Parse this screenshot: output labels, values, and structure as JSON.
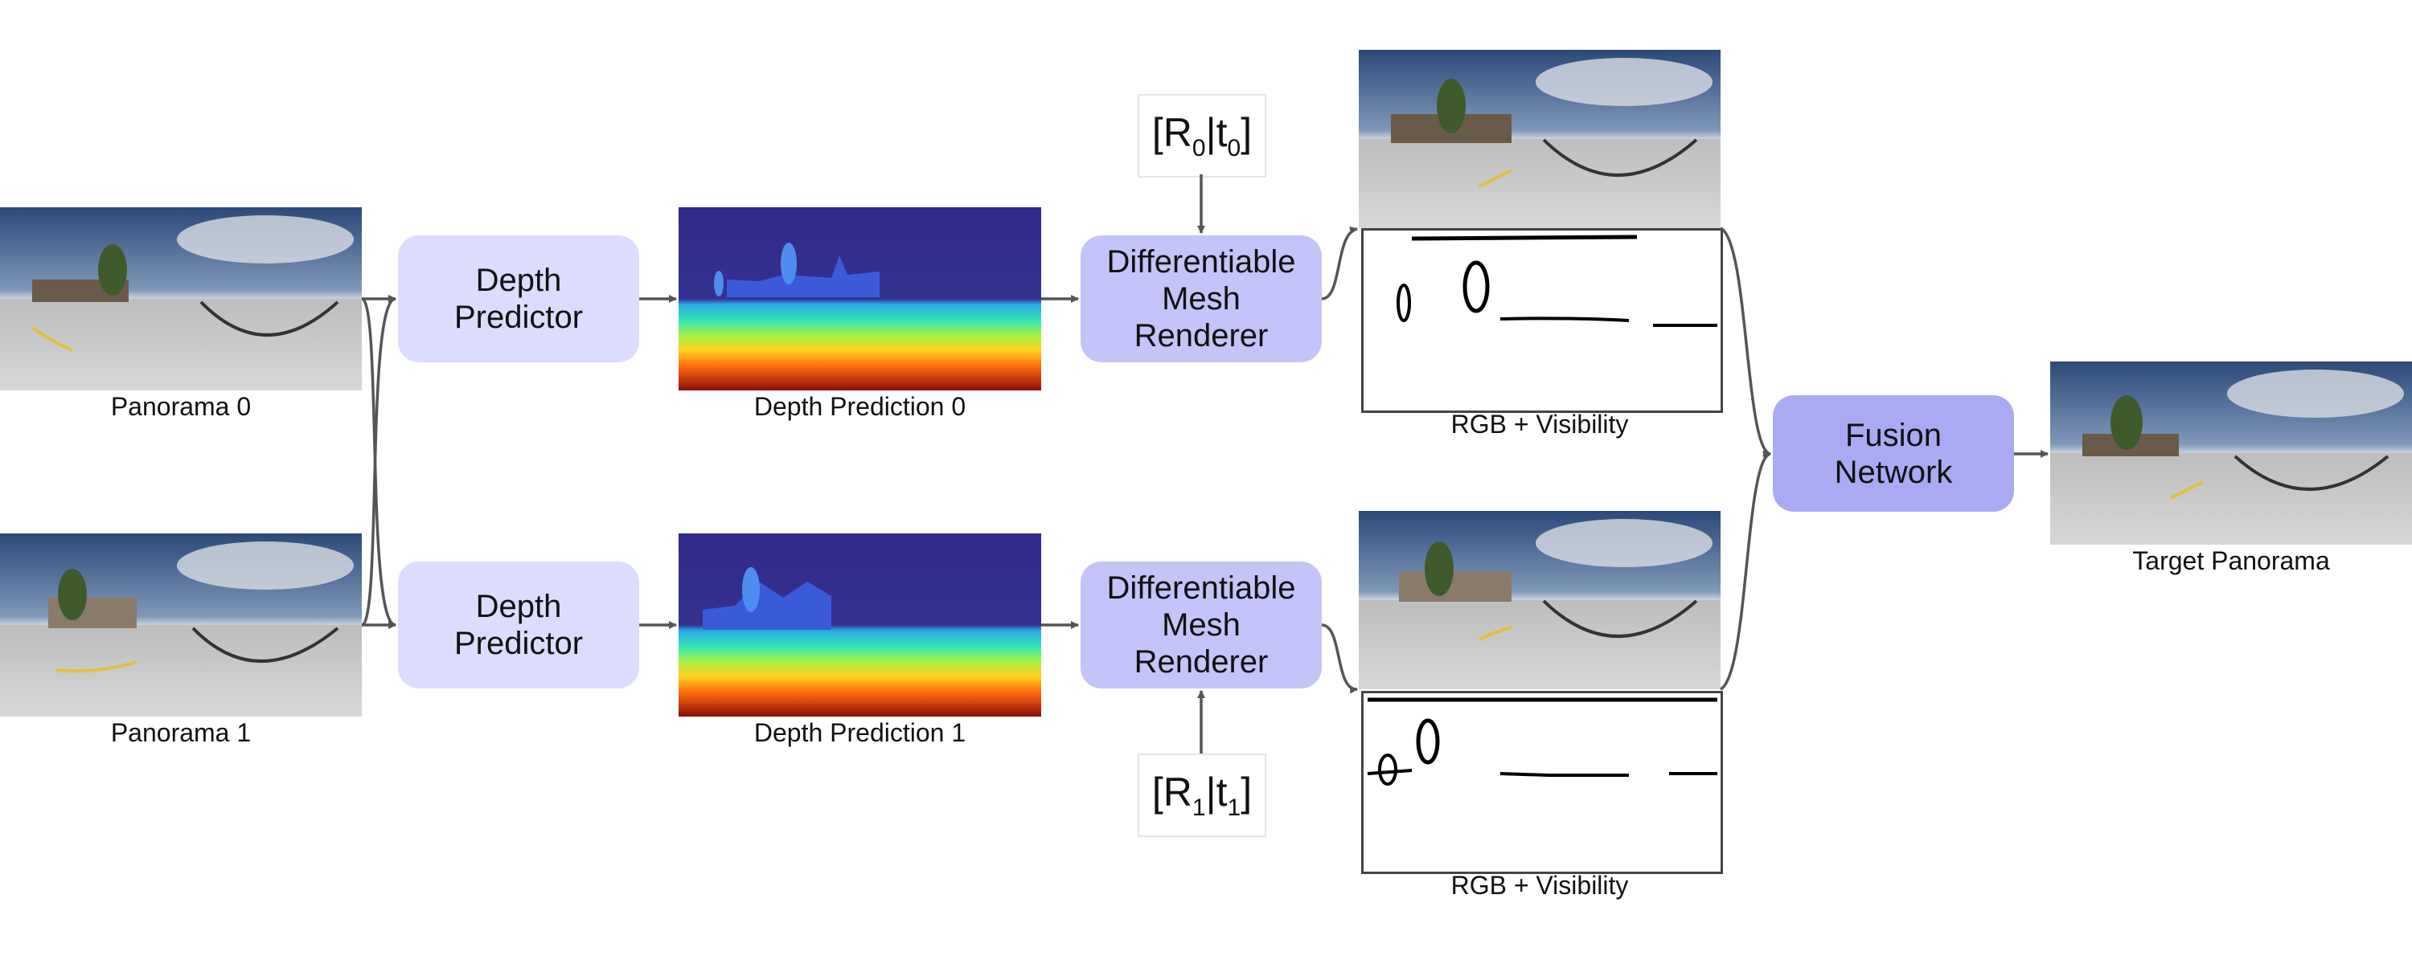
{
  "inputs": [
    {
      "caption": "Panorama 0"
    },
    {
      "caption": "Panorama 1"
    }
  ],
  "depth_predictor": {
    "label": "Depth\nPredictor"
  },
  "depth_predictions": [
    {
      "caption": "Depth Prediction 0"
    },
    {
      "caption": "Depth Prediction 1"
    }
  ],
  "renderer": {
    "label": "Differentiable\nMesh\nRenderer"
  },
  "poses": [
    {
      "R": "R",
      "r_sub": "0",
      "t": "t",
      "t_sub": "0"
    },
    {
      "R": "R",
      "r_sub": "1",
      "t": "t",
      "t_sub": "1"
    }
  ],
  "rgb_visibility": [
    {
      "caption": "RGB + Visibility"
    },
    {
      "caption": "RGB + Visibility"
    }
  ],
  "fusion": {
    "label": "Fusion\nNetwork"
  },
  "output": {
    "caption": "Target Panorama"
  },
  "colors": {
    "depth_predictor_box": "#dcdcff",
    "renderer_box": "#c4c4f8",
    "fusion_box": "#aaaaf3",
    "arrow": "#555555"
  }
}
